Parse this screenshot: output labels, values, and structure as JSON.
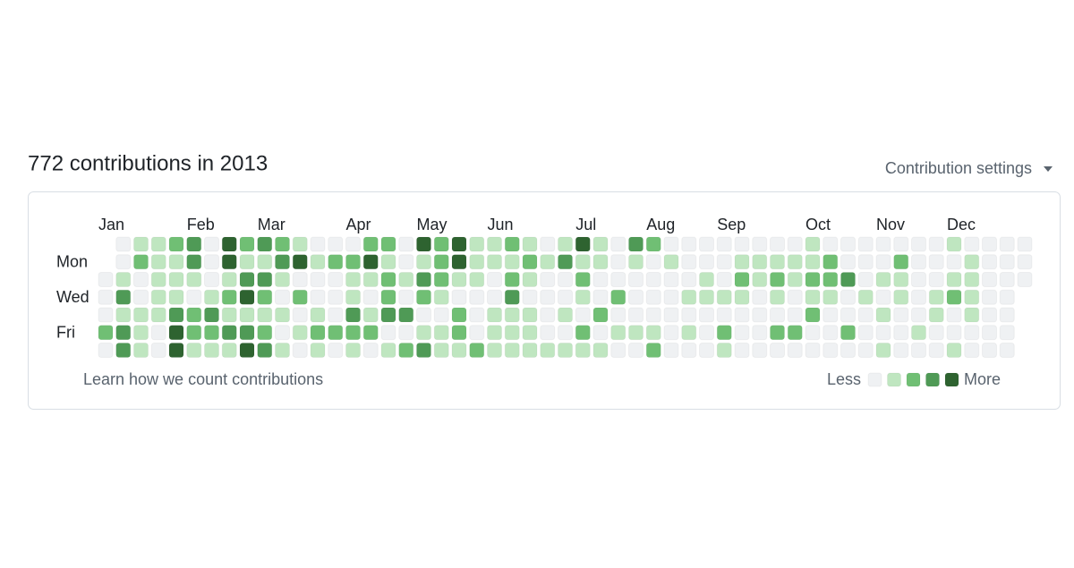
{
  "header": {
    "title": "772 contributions in 2013",
    "settings": "Contribution settings"
  },
  "graph": {
    "months": [
      {
        "label": "Jan",
        "week": 0
      },
      {
        "label": "Feb",
        "week": 5
      },
      {
        "label": "Mar",
        "week": 9
      },
      {
        "label": "Apr",
        "week": 14
      },
      {
        "label": "May",
        "week": 18
      },
      {
        "label": "Jun",
        "week": 22
      },
      {
        "label": "Jul",
        "week": 27
      },
      {
        "label": "Aug",
        "week": 31
      },
      {
        "label": "Sep",
        "week": 35
      },
      {
        "label": "Oct",
        "week": 40
      },
      {
        "label": "Nov",
        "week": 44
      },
      {
        "label": "Dec",
        "week": 48
      }
    ],
    "day_labels": [
      {
        "label": "Mon",
        "row": 1
      },
      {
        "label": "Wed",
        "row": 3
      },
      {
        "label": "Fri",
        "row": 5
      }
    ],
    "colors": [
      "#eff1f3",
      "#bfe6c0",
      "#70bf74",
      "#4f9a56",
      "#2e6330"
    ],
    "rows": [
      [
        null,
        0,
        1,
        1,
        2,
        3,
        0,
        4,
        2,
        3,
        2,
        1,
        0,
        0,
        0,
        2,
        2,
        0,
        4,
        2,
        4,
        1,
        1,
        2,
        1,
        0,
        1,
        4,
        1,
        0,
        3,
        2,
        0,
        0,
        0,
        0,
        0,
        0,
        0,
        0,
        1,
        0,
        0,
        0,
        0,
        0,
        0,
        0,
        1,
        0,
        0,
        0,
        0
      ],
      [
        null,
        0,
        2,
        1,
        1,
        3,
        0,
        4,
        1,
        1,
        3,
        4,
        1,
        2,
        2,
        4,
        1,
        0,
        1,
        2,
        4,
        1,
        1,
        1,
        2,
        1,
        3,
        1,
        1,
        0,
        1,
        0,
        1,
        0,
        0,
        0,
        1,
        1,
        1,
        1,
        1,
        2,
        0,
        0,
        0,
        2,
        0,
        0,
        0,
        1,
        0,
        0,
        0
      ],
      [
        0,
        1,
        0,
        1,
        1,
        1,
        0,
        1,
        3,
        3,
        1,
        0,
        0,
        0,
        1,
        1,
        2,
        1,
        3,
        2,
        1,
        1,
        0,
        2,
        1,
        0,
        0,
        2,
        0,
        0,
        0,
        0,
        0,
        0,
        1,
        0,
        2,
        1,
        2,
        1,
        2,
        2,
        3,
        0,
        1,
        1,
        0,
        0,
        1,
        1,
        0,
        0,
        0
      ],
      [
        0,
        3,
        0,
        1,
        1,
        0,
        1,
        2,
        4,
        2,
        0,
        2,
        0,
        0,
        1,
        0,
        2,
        0,
        2,
        1,
        0,
        0,
        0,
        3,
        0,
        0,
        0,
        1,
        0,
        2,
        0,
        0,
        0,
        1,
        1,
        1,
        1,
        0,
        1,
        0,
        1,
        1,
        0,
        1,
        0,
        1,
        0,
        1,
        2,
        1,
        0,
        0,
        null
      ],
      [
        0,
        1,
        1,
        1,
        3,
        2,
        3,
        1,
        1,
        1,
        1,
        0,
        1,
        0,
        3,
        1,
        3,
        3,
        0,
        0,
        2,
        0,
        1,
        1,
        1,
        0,
        1,
        0,
        2,
        0,
        0,
        0,
        0,
        0,
        0,
        0,
        0,
        0,
        0,
        0,
        2,
        0,
        0,
        0,
        1,
        0,
        0,
        1,
        0,
        1,
        0,
        0,
        null
      ],
      [
        2,
        3,
        1,
        0,
        4,
        2,
        2,
        3,
        3,
        2,
        0,
        1,
        2,
        2,
        2,
        2,
        0,
        0,
        1,
        1,
        2,
        0,
        1,
        1,
        1,
        0,
        0,
        2,
        0,
        1,
        1,
        1,
        0,
        1,
        0,
        2,
        0,
        0,
        2,
        2,
        0,
        0,
        2,
        0,
        0,
        0,
        1,
        0,
        0,
        0,
        0,
        0,
        null
      ],
      [
        0,
        3,
        1,
        0,
        4,
        1,
        1,
        1,
        4,
        3,
        1,
        0,
        1,
        0,
        1,
        0,
        1,
        2,
        3,
        1,
        1,
        2,
        1,
        1,
        1,
        1,
        1,
        1,
        1,
        0,
        0,
        2,
        0,
        0,
        0,
        1,
        0,
        0,
        0,
        0,
        0,
        0,
        0,
        0,
        1,
        0,
        0,
        0,
        1,
        0,
        0,
        0,
        null
      ]
    ],
    "learn_link": "Learn how we count contributions",
    "legend_less": "Less",
    "legend_more": "More"
  }
}
